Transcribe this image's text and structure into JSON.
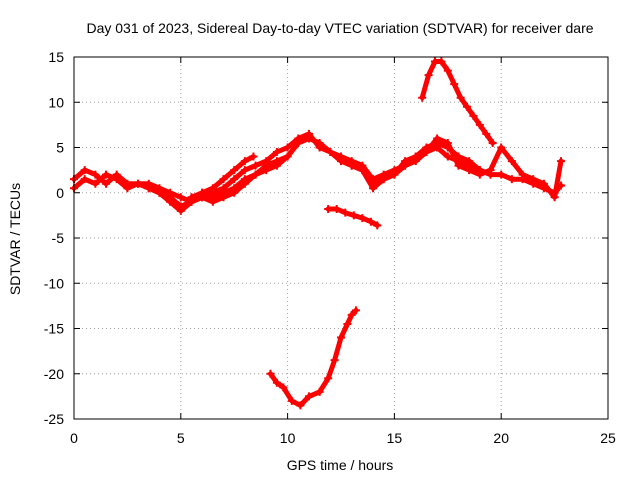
{
  "chart_data": {
    "type": "scatter",
    "title": "Day 031 of 2023, Sidereal Day-to-day VTEC variation (SDTVAR) for receiver dare",
    "xlabel": "GPS time / hours",
    "ylabel": "SDTVAR / TECUs",
    "xlim": [
      0,
      25
    ],
    "ylim": [
      -25,
      15
    ],
    "xticks": [
      0,
      5,
      10,
      15,
      20,
      25
    ],
    "yticks": [
      15,
      10,
      5,
      0,
      -5,
      -10,
      -15,
      -20,
      -25
    ],
    "grid": true,
    "marker_color": "#ff0000",
    "series": [
      {
        "name": "track-1",
        "x": [
          0.0,
          0.5,
          1.0,
          1.5,
          2.0,
          2.5,
          3.0,
          3.5,
          4.0,
          4.5,
          5.0,
          5.5,
          6.0,
          6.5,
          7.0,
          7.5,
          8.0,
          8.5,
          9.0,
          9.5,
          10.0,
          10.5,
          11.0,
          11.5,
          12.0,
          12.5,
          13.0,
          13.5,
          14.0,
          14.5,
          15.0,
          15.5,
          16.0,
          16.5,
          17.0,
          17.5,
          18.0,
          18.5,
          19.0,
          19.5,
          20.0,
          20.5,
          21.0,
          21.5,
          22.0,
          22.5,
          22.8
        ],
        "y": [
          1.5,
          2.5,
          2.0,
          1.0,
          2.0,
          1.0,
          1.0,
          1.0,
          0.5,
          0.0,
          -0.5,
          -1.0,
          -0.5,
          0.0,
          0.5,
          1.5,
          2.5,
          3.0,
          3.5,
          4.5,
          5.0,
          6.0,
          6.5,
          5.0,
          4.5,
          4.0,
          3.5,
          3.0,
          1.5,
          2.0,
          2.5,
          3.0,
          4.0,
          5.0,
          5.5,
          5.0,
          4.0,
          3.5,
          2.5,
          2.0,
          2.0,
          1.5,
          1.5,
          1.0,
          0.5,
          0.0,
          0.8
        ]
      },
      {
        "name": "track-2",
        "x": [
          0.0,
          0.5,
          1.0,
          1.5,
          2.0,
          2.5,
          3.0,
          3.5,
          4.0,
          4.5,
          5.0,
          5.5,
          6.0,
          6.5,
          7.0,
          7.5,
          8.0,
          8.5,
          9.0,
          9.5,
          10.0,
          10.5,
          11.0,
          11.5,
          12.0,
          12.5,
          13.0,
          13.5,
          14.0,
          14.5,
          15.0,
          15.5,
          16.0,
          16.5,
          17.0,
          17.5,
          18.0,
          18.5,
          19.0,
          19.5,
          20.0,
          20.5,
          21.0,
          21.5,
          22.0,
          22.5,
          22.8
        ],
        "y": [
          0.5,
          1.5,
          1.0,
          2.0,
          1.5,
          0.5,
          1.0,
          0.5,
          0.0,
          -0.5,
          -1.5,
          -1.0,
          0.0,
          -0.5,
          0.0,
          0.5,
          1.5,
          2.0,
          3.0,
          3.5,
          4.0,
          5.5,
          6.0,
          5.5,
          4.5,
          3.5,
          3.0,
          2.5,
          0.5,
          1.5,
          2.0,
          3.5,
          4.0,
          4.5,
          6.0,
          5.5,
          3.0,
          2.5,
          2.0,
          2.5,
          5.0,
          3.5,
          2.0,
          1.5,
          1.0,
          -0.5,
          3.5
        ]
      },
      {
        "name": "track-3",
        "x": [
          3.5,
          4.0,
          4.5,
          5.0,
          5.5,
          6.0,
          6.5,
          7.0,
          7.5,
          8.0,
          8.5,
          9.0,
          9.5,
          10.0
        ],
        "y": [
          0.5,
          0.0,
          -1.0,
          -2.0,
          -1.0,
          -0.5,
          -1.0,
          -0.5,
          0.0,
          1.0,
          2.0,
          2.5,
          3.0,
          4.0
        ]
      },
      {
        "name": "track-4",
        "x": [
          5.5,
          6.0,
          6.5,
          7.0,
          7.5,
          8.0,
          8.4
        ],
        "y": [
          -0.5,
          0.0,
          0.5,
          1.5,
          2.5,
          3.5,
          4.0
        ]
      },
      {
        "name": "track-5",
        "x": [
          16.3,
          16.6,
          16.9,
          17.2,
          17.5,
          17.8,
          18.1,
          18.4,
          18.7,
          19.0,
          19.3,
          19.6
        ],
        "y": [
          10.5,
          13.0,
          14.5,
          14.5,
          13.5,
          12.0,
          10.5,
          9.5,
          8.5,
          7.5,
          6.5,
          5.5
        ]
      },
      {
        "name": "track-6",
        "x": [
          13.0,
          13.5,
          14.0,
          14.5,
          15.0,
          15.5,
          16.0,
          16.5,
          17.0,
          17.5,
          18.0,
          18.5,
          19.0,
          19.5
        ],
        "y": [
          3.0,
          2.5,
          1.0,
          1.5,
          2.0,
          3.0,
          3.5,
          4.5,
          5.0,
          4.0,
          3.5,
          3.0,
          2.5,
          2.0
        ]
      },
      {
        "name": "track-7",
        "x": [
          11.9,
          12.3,
          12.7,
          13.1,
          13.5,
          13.9,
          14.2
        ],
        "y": [
          -1.8,
          -1.8,
          -2.2,
          -2.5,
          -2.8,
          -3.2,
          -3.6
        ]
      },
      {
        "name": "track-8",
        "x": [
          9.2,
          9.5,
          9.8,
          10.2,
          10.6,
          11.0,
          11.5,
          11.9,
          12.2,
          12.5,
          12.8,
          13.0,
          13.2
        ],
        "y": [
          -20.0,
          -21.0,
          -21.5,
          -23.0,
          -23.5,
          -22.5,
          -22.0,
          -20.5,
          -18.5,
          -16.0,
          -14.5,
          -13.5,
          -13.0
        ]
      }
    ]
  }
}
